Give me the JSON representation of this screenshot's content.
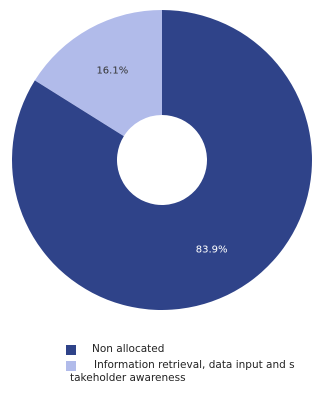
{
  "chart_data": {
    "type": "pie",
    "donut": true,
    "title": "",
    "slices": [
      {
        "label": "Non allocated",
        "value": 83.9,
        "display": "83.9%",
        "color": "#2f4389"
      },
      {
        "label": "Information retrieval, data input and stakeholder awareness",
        "value": 16.1,
        "display": "16.1%",
        "color": "#b1bbea"
      }
    ],
    "legend_placement": "bottom-left",
    "legend": [
      {
        "color": "#2f4389",
        "text": "Non allocated"
      },
      {
        "color": "#b1bbea",
        "line1": "Information retrieval, data input and s",
        "line2": "takeholder awareness"
      }
    ]
  }
}
